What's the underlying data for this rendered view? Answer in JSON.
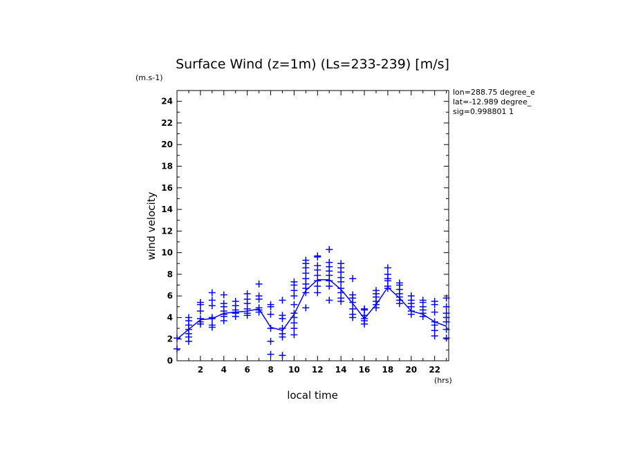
{
  "chart_data": {
    "type": "scatter",
    "title": "Surface Wind (z=1m) (Ls=233-239) [m/s]",
    "y_unit": "(m.s-1)",
    "x_unit": "(hrs)",
    "xlabel": "local time",
    "ylabel": "wind velocity",
    "xlim": [
      0,
      23.2
    ],
    "ylim": [
      0,
      25
    ],
    "xticks": [
      2,
      4,
      6,
      8,
      10,
      12,
      14,
      16,
      18,
      20,
      22
    ],
    "yticks": [
      0,
      2,
      4,
      6,
      8,
      10,
      12,
      14,
      16,
      18,
      20,
      22,
      24
    ],
    "info": [
      "lon=288.75 degree_e",
      "lat=-12.989 degree_",
      "sig=0.998801 1"
    ],
    "color": "#0000ff",
    "series": [
      {
        "type": "line",
        "x": [
          0,
          1,
          2,
          3,
          4,
          5,
          6,
          7,
          8,
          9,
          10,
          11,
          12,
          13,
          14,
          15,
          16,
          17,
          18,
          19,
          20,
          21,
          22,
          23
        ],
        "y": [
          2.0,
          2.9,
          3.8,
          3.9,
          4.4,
          4.5,
          4.6,
          4.8,
          3.1,
          2.8,
          4.3,
          6.5,
          7.5,
          7.5,
          6.6,
          5.3,
          3.9,
          5.2,
          6.8,
          5.8,
          4.6,
          4.3,
          3.6,
          3.2
        ]
      },
      {
        "type": "scatter",
        "marker": "plus",
        "points": [
          [
            0,
            1.1
          ],
          [
            0,
            2.1
          ],
          [
            1,
            1.8
          ],
          [
            1,
            2.2
          ],
          [
            1,
            2.5
          ],
          [
            1,
            2.9
          ],
          [
            1,
            3.3
          ],
          [
            1,
            3.7
          ],
          [
            1,
            4.0
          ],
          [
            2,
            3.4
          ],
          [
            2,
            3.6
          ],
          [
            2,
            3.9
          ],
          [
            2,
            4.6
          ],
          [
            2,
            5.2
          ],
          [
            2,
            5.4
          ],
          [
            3,
            3.1
          ],
          [
            3,
            3.3
          ],
          [
            3,
            3.9
          ],
          [
            3,
            4.0
          ],
          [
            3,
            5.1
          ],
          [
            3,
            5.6
          ],
          [
            3,
            6.3
          ],
          [
            4,
            3.7
          ],
          [
            4,
            4.1
          ],
          [
            4,
            4.3
          ],
          [
            4,
            4.6
          ],
          [
            4,
            5.0
          ],
          [
            4,
            5.3
          ],
          [
            4,
            6.1
          ],
          [
            5,
            4.1
          ],
          [
            5,
            4.4
          ],
          [
            5,
            4.5
          ],
          [
            5,
            4.7
          ],
          [
            5,
            5.1
          ],
          [
            5,
            5.5
          ],
          [
            6,
            4.2
          ],
          [
            6,
            4.4
          ],
          [
            6,
            4.8
          ],
          [
            6,
            5.3
          ],
          [
            6,
            5.7
          ],
          [
            6,
            6.2
          ],
          [
            7,
            4.5
          ],
          [
            7,
            4.7
          ],
          [
            7,
            4.9
          ],
          [
            7,
            5.7
          ],
          [
            7,
            6.0
          ],
          [
            7,
            7.1
          ],
          [
            8,
            0.6
          ],
          [
            8,
            1.8
          ],
          [
            8,
            3.0
          ],
          [
            8,
            4.3
          ],
          [
            8,
            5.0
          ],
          [
            8,
            5.2
          ],
          [
            9,
            0.5
          ],
          [
            9,
            2.2
          ],
          [
            9,
            2.5
          ],
          [
            9,
            3.0
          ],
          [
            9,
            3.9
          ],
          [
            9,
            4.2
          ],
          [
            9,
            5.6
          ],
          [
            10,
            2.4
          ],
          [
            10,
            3.0
          ],
          [
            10,
            3.5
          ],
          [
            10,
            4.0
          ],
          [
            10,
            4.4
          ],
          [
            10,
            5.2
          ],
          [
            10,
            6.0
          ],
          [
            10,
            6.5
          ],
          [
            10,
            7.0
          ],
          [
            10,
            7.3
          ],
          [
            11,
            4.9
          ],
          [
            11,
            6.3
          ],
          [
            11,
            6.7
          ],
          [
            11,
            7.1
          ],
          [
            11,
            7.6
          ],
          [
            11,
            8.1
          ],
          [
            11,
            8.6
          ],
          [
            11,
            9.0
          ],
          [
            11,
            9.3
          ],
          [
            12,
            6.3
          ],
          [
            12,
            6.9
          ],
          [
            12,
            7.4
          ],
          [
            12,
            7.9
          ],
          [
            12,
            8.4
          ],
          [
            12,
            8.8
          ],
          [
            12,
            9.6
          ],
          [
            12,
            9.7
          ],
          [
            13,
            5.6
          ],
          [
            13,
            6.9
          ],
          [
            13,
            7.4
          ],
          [
            13,
            7.9
          ],
          [
            13,
            8.3
          ],
          [
            13,
            8.7
          ],
          [
            13,
            9.1
          ],
          [
            13,
            10.3
          ],
          [
            14,
            5.5
          ],
          [
            14,
            5.8
          ],
          [
            14,
            6.3
          ],
          [
            14,
            6.7
          ],
          [
            14,
            7.3
          ],
          [
            14,
            7.7
          ],
          [
            14,
            8.2
          ],
          [
            14,
            8.6
          ],
          [
            14,
            9.0
          ],
          [
            15,
            4.0
          ],
          [
            15,
            4.3
          ],
          [
            15,
            4.8
          ],
          [
            15,
            5.4
          ],
          [
            15,
            5.8
          ],
          [
            15,
            6.1
          ],
          [
            15,
            7.6
          ],
          [
            16,
            3.4
          ],
          [
            16,
            3.7
          ],
          [
            16,
            3.9
          ],
          [
            16,
            4.2
          ],
          [
            16,
            4.7
          ],
          [
            16,
            4.8
          ],
          [
            17,
            4.9
          ],
          [
            17,
            5.2
          ],
          [
            17,
            5.5
          ],
          [
            17,
            5.9
          ],
          [
            17,
            6.2
          ],
          [
            17,
            6.5
          ],
          [
            18,
            6.7
          ],
          [
            18,
            6.9
          ],
          [
            18,
            7.4
          ],
          [
            18,
            7.6
          ],
          [
            18,
            8.0
          ],
          [
            18,
            8.6
          ],
          [
            19,
            5.3
          ],
          [
            19,
            5.6
          ],
          [
            19,
            5.9
          ],
          [
            19,
            6.2
          ],
          [
            19,
            6.6
          ],
          [
            19,
            7.0
          ],
          [
            19,
            7.2
          ],
          [
            20,
            4.3
          ],
          [
            20,
            4.6
          ],
          [
            20,
            5.0
          ],
          [
            20,
            5.3
          ],
          [
            20,
            5.6
          ],
          [
            20,
            6.0
          ],
          [
            21,
            4.1
          ],
          [
            21,
            4.4
          ],
          [
            21,
            4.7
          ],
          [
            21,
            5.0
          ],
          [
            21,
            5.4
          ],
          [
            21,
            5.6
          ],
          [
            22,
            2.3
          ],
          [
            22,
            2.8
          ],
          [
            22,
            3.3
          ],
          [
            22,
            3.6
          ],
          [
            22,
            4.5
          ],
          [
            22,
            5.2
          ],
          [
            22,
            5.5
          ],
          [
            23,
            2.1
          ],
          [
            23,
            2.9
          ],
          [
            23,
            3.6
          ],
          [
            23,
            4.0
          ],
          [
            23,
            4.4
          ],
          [
            23,
            5.0
          ],
          [
            23,
            5.8
          ]
        ]
      }
    ]
  }
}
